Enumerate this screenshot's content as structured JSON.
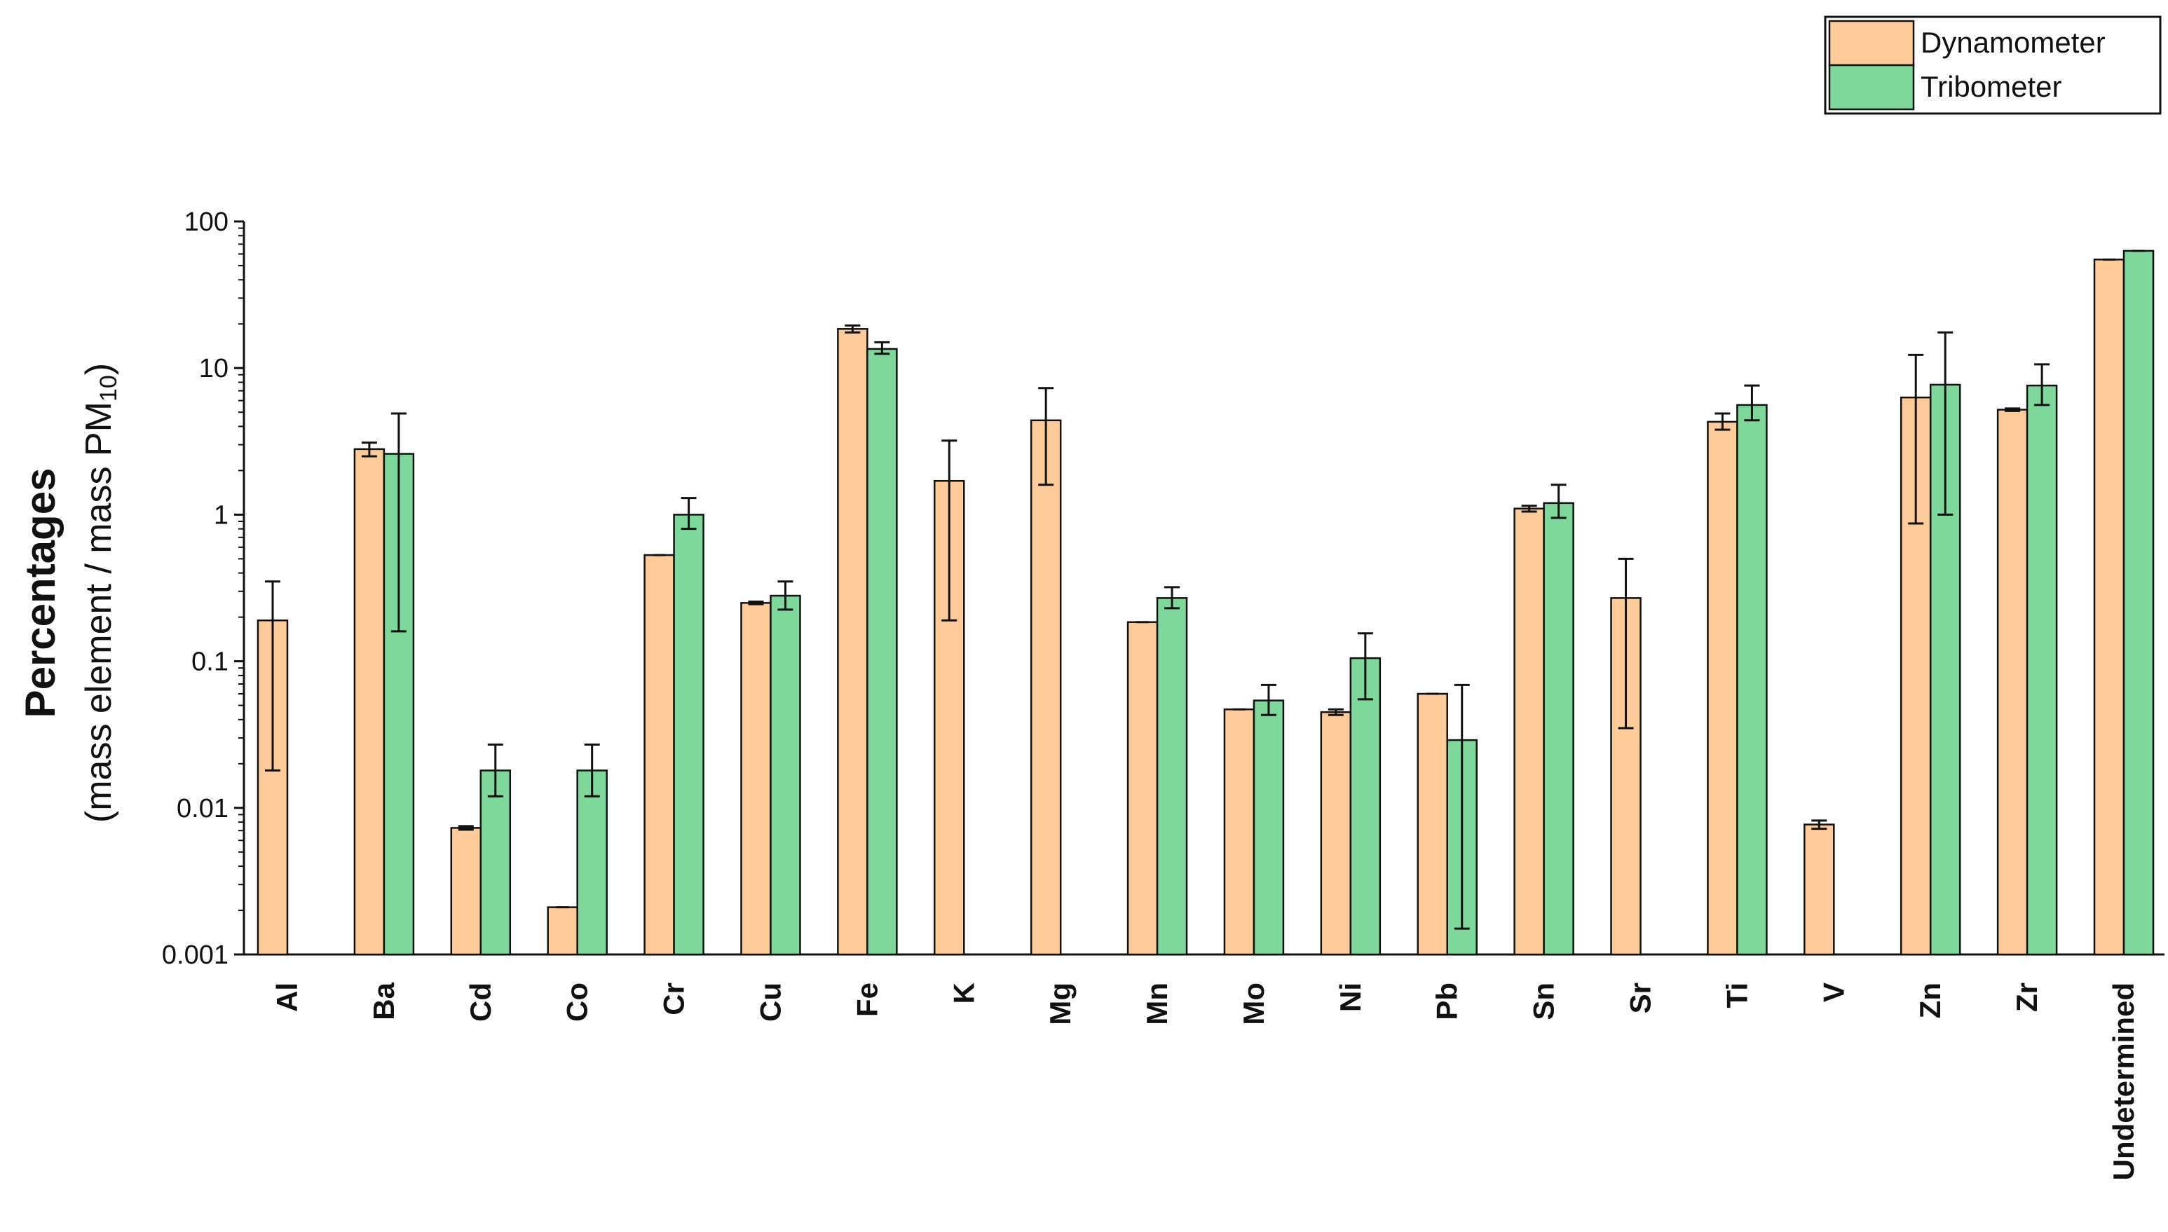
{
  "chart_data": {
    "type": "bar",
    "title": "",
    "xlabel": "",
    "ylabel": "Percentages",
    "ylabel_sub": {
      "text": "(mass element / mass PM",
      "subscript": "10",
      "close": ")"
    },
    "yscale": "log",
    "ylim": [
      0.001,
      100
    ],
    "ytick_values": [
      0.001,
      0.01,
      0.1,
      1,
      10,
      100
    ],
    "ytick_labels": [
      "0.001",
      "0.01",
      "0.1",
      "1",
      "10",
      "100"
    ],
    "grid": false,
    "legend_position": "top-right",
    "categories": [
      "Al",
      "Ba",
      "Cd",
      "Co",
      "Cr",
      "Cu",
      "Fe",
      "K",
      "Mg",
      "Mn",
      "Mo",
      "Ni",
      "Pb",
      "Sn",
      "Sr",
      "Ti",
      "V",
      "Zn",
      "Zr",
      "Undetermined"
    ],
    "series": [
      {
        "name": "Dynamometer",
        "color": "#FFCC99",
        "values": [
          0.19,
          2.8,
          0.0073,
          0.0021,
          0.53,
          0.25,
          18.5,
          1.7,
          4.4,
          0.185,
          0.047,
          0.045,
          0.06,
          1.1,
          0.27,
          4.3,
          0.0077,
          6.3,
          5.2,
          55
        ],
        "err_low": [
          0.018,
          2.5,
          0.0071,
          0.0021,
          0.53,
          0.245,
          17.5,
          0.19,
          1.6,
          0.185,
          0.047,
          0.043,
          0.06,
          1.05,
          0.035,
          3.8,
          0.0072,
          0.87,
          5.1,
          55
        ],
        "err_high": [
          0.35,
          3.1,
          0.0075,
          0.0021,
          0.53,
          0.255,
          19.5,
          3.2,
          7.3,
          0.185,
          0.047,
          0.047,
          0.06,
          1.15,
          0.5,
          4.9,
          0.0082,
          12.3,
          5.3,
          55
        ]
      },
      {
        "name": "Tribometer",
        "color": "#7FD89B",
        "values": [
          null,
          2.6,
          0.018,
          0.018,
          1.0,
          0.28,
          13.5,
          null,
          null,
          0.27,
          0.054,
          0.105,
          0.029,
          1.2,
          null,
          5.6,
          null,
          7.7,
          7.6,
          63
        ],
        "err_low": [
          null,
          0.16,
          0.012,
          0.012,
          0.8,
          0.225,
          12.5,
          null,
          null,
          0.23,
          0.043,
          0.055,
          0.0015,
          0.95,
          null,
          4.4,
          null,
          1.0,
          5.6,
          63
        ],
        "err_high": [
          null,
          4.9,
          0.027,
          0.027,
          1.3,
          0.35,
          15.0,
          null,
          null,
          0.32,
          0.069,
          0.155,
          0.069,
          1.6,
          null,
          7.6,
          null,
          17.5,
          10.6,
          63
        ]
      }
    ]
  },
  "legend": {
    "items": [
      {
        "label": "Dynamometer",
        "color": "#FFCC99"
      },
      {
        "label": "Tribometer",
        "color": "#7FD89B"
      }
    ]
  }
}
